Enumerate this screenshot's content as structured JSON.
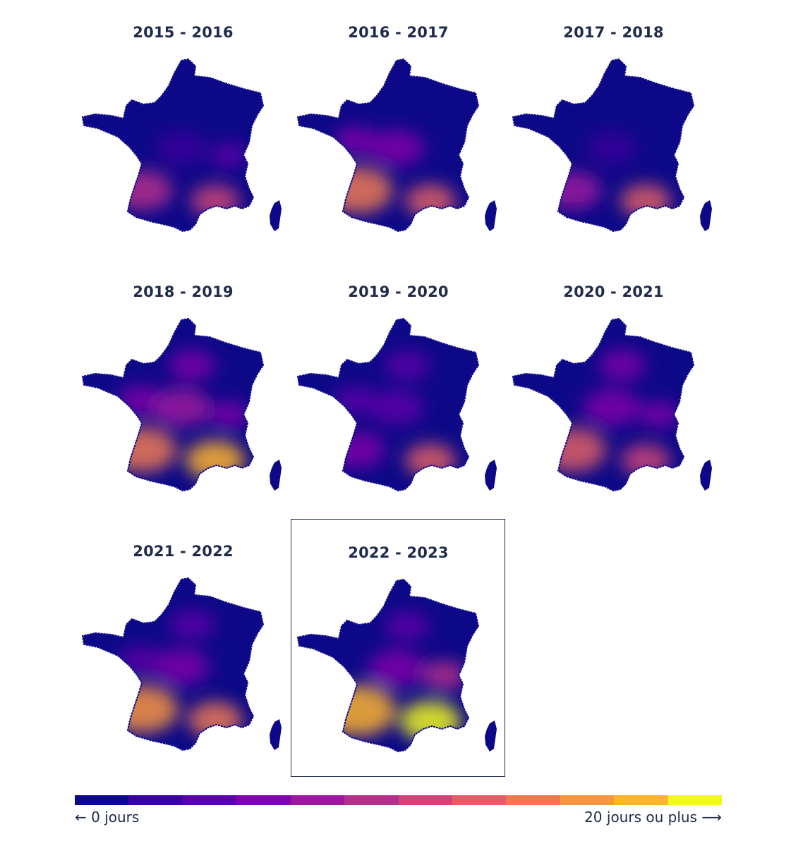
{
  "panels": [
    {
      "title": "2015 - 2016",
      "highlighted": false,
      "hotspots": [
        {
          "region": "south-west",
          "intensity": 0.45
        },
        {
          "region": "south-east",
          "intensity": 0.55
        },
        {
          "region": "east",
          "intensity": 0.2
        },
        {
          "region": "centre",
          "intensity": 0.1
        }
      ]
    },
    {
      "title": "2016 - 2017",
      "highlighted": false,
      "hotspots": [
        {
          "region": "south-west",
          "intensity": 0.75
        },
        {
          "region": "south-east",
          "intensity": 0.6
        },
        {
          "region": "centre",
          "intensity": 0.25
        },
        {
          "region": "west",
          "intensity": 0.25
        }
      ]
    },
    {
      "title": "2017 - 2018",
      "highlighted": false,
      "hotspots": [
        {
          "region": "south-west",
          "intensity": 0.35
        },
        {
          "region": "south-east",
          "intensity": 0.6
        },
        {
          "region": "centre",
          "intensity": 0.05
        }
      ]
    },
    {
      "title": "2018 - 2019",
      "highlighted": false,
      "hotspots": [
        {
          "region": "south-west",
          "intensity": 0.7
        },
        {
          "region": "south-east",
          "intensity": 0.95
        },
        {
          "region": "centre",
          "intensity": 0.35
        },
        {
          "region": "north",
          "intensity": 0.25
        },
        {
          "region": "west",
          "intensity": 0.3
        },
        {
          "region": "east",
          "intensity": 0.3
        }
      ]
    },
    {
      "title": "2019 - 2020",
      "highlighted": false,
      "hotspots": [
        {
          "region": "south-west",
          "intensity": 0.3
        },
        {
          "region": "south-east",
          "intensity": 0.6
        },
        {
          "region": "centre",
          "intensity": 0.22
        },
        {
          "region": "north",
          "intensity": 0.2
        },
        {
          "region": "west",
          "intensity": 0.22
        }
      ]
    },
    {
      "title": "2020 - 2021",
      "highlighted": false,
      "hotspots": [
        {
          "region": "south-west",
          "intensity": 0.65
        },
        {
          "region": "south-east",
          "intensity": 0.55
        },
        {
          "region": "centre",
          "intensity": 0.3
        },
        {
          "region": "north",
          "intensity": 0.25
        },
        {
          "region": "east",
          "intensity": 0.3
        }
      ]
    },
    {
      "title": "2021 - 2022",
      "highlighted": false,
      "hotspots": [
        {
          "region": "south-west",
          "intensity": 0.8
        },
        {
          "region": "south-east",
          "intensity": 0.75
        },
        {
          "region": "centre",
          "intensity": 0.25
        },
        {
          "region": "north",
          "intensity": 0.2
        },
        {
          "region": "west",
          "intensity": 0.22
        }
      ]
    },
    {
      "title": "2022 - 2023",
      "highlighted": true,
      "hotspots": [
        {
          "region": "south-west",
          "intensity": 0.95
        },
        {
          "region": "south-east",
          "intensity": 1.0
        },
        {
          "region": "east",
          "intensity": 0.45
        },
        {
          "region": "centre",
          "intensity": 0.3
        },
        {
          "region": "north",
          "intensity": 0.22
        }
      ]
    }
  ],
  "legend": {
    "colors": [
      "#0d0887",
      "#3a049a",
      "#5c01a6",
      "#7e03a8",
      "#9c179e",
      "#b52f8c",
      "#cc4778",
      "#de5f65",
      "#ed7953",
      "#f89540",
      "#fdb42f",
      "#f0f921"
    ],
    "min_label": "← 0 jours",
    "max_label": "20 jours ou plus ⟶"
  }
}
